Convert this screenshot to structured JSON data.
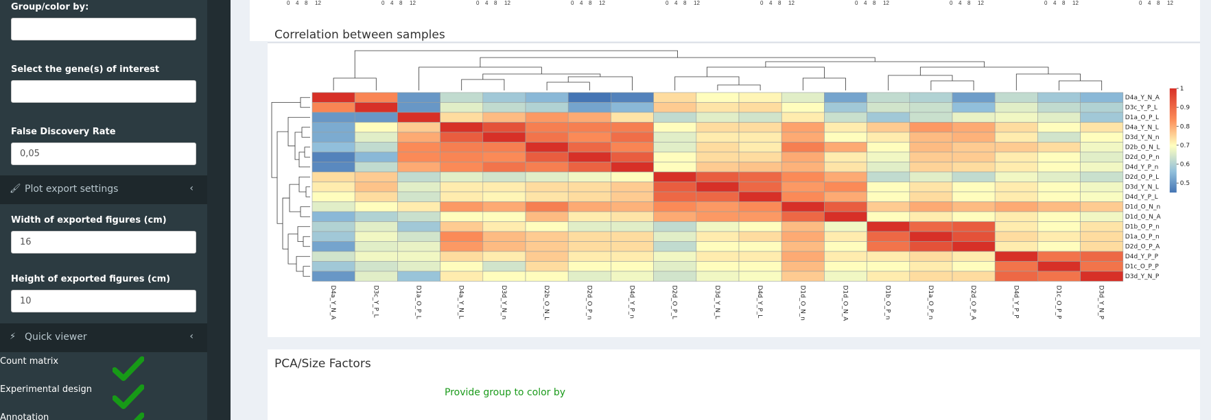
{
  "sidebar": {
    "group_color_label": "Group/color by:",
    "group_color_value": "",
    "genes_label": "Select the gene(s) of interest",
    "genes_value": "",
    "fdr_label": "False Discovery Rate",
    "fdr_value": "0,05",
    "plot_export_label": "Plot export settings",
    "width_label": "Width of exported figures (cm)",
    "width_value": "16",
    "height_label": "Height of exported figures (cm)",
    "height_value": "10",
    "quick_viewer_label": "Quick viewer",
    "quick_items": [
      "Count matrix",
      "Experimental design",
      "Annotation"
    ]
  },
  "top_axis_ticks": [
    "0",
    "4",
    "8",
    "12"
  ],
  "correlation": {
    "title": "Correlation between samples"
  },
  "pca": {
    "title": "PCA/Size Factors",
    "message": "Provide group to color by"
  },
  "colors": {
    "low": "#4575b4",
    "mid": "#ffffbf",
    "high": "#d73027",
    "sidebar_bg": "#2c3b41",
    "message_green": "#1a9a1a"
  },
  "chart_data": {
    "type": "heatmap",
    "title": "",
    "rows": [
      "D4a_Y_N_A",
      "D3c_Y_P_L",
      "D1a_O_P_L",
      "D4a_Y_N_L",
      "D3d_Y_N_n",
      "D2b_O_N_L",
      "D2d_O_P_n",
      "D4d_Y_P_n",
      "D2d_O_P_L",
      "D3d_Y_N_L",
      "D4d_Y_P_L",
      "D1d_O_N_n",
      "D1d_O_N_A",
      "D1b_O_P_n",
      "D1a_O_P_n",
      "D2d_O_P_A",
      "D4d_Y_P_P",
      "D1c_O_P_P",
      "D3d_Y_N_P"
    ],
    "columns": [
      "D4a_Y_N_A",
      "D3c_Y_P_L",
      "D1a_O_P_L",
      "D4a_Y_N_L",
      "D3d_Y_N_n",
      "D2b_O_N_L",
      "D2d_O_P_n",
      "D4d_Y_P_n",
      "D2d_O_P_L",
      "D3d_Y_N_L",
      "D4d_Y_P_L",
      "D1d_O_N_n",
      "D1d_O_N_A",
      "D1b_O_P_n",
      "D1a_O_P_n",
      "D2d_O_P_A",
      "D4d_Y_P_P",
      "D1c_O_P_P",
      "D3d_Y_N_P"
    ],
    "values": [
      [
        1.0,
        0.85,
        0.5,
        0.62,
        0.58,
        0.55,
        0.45,
        0.47,
        0.74,
        0.7,
        0.71,
        0.66,
        0.52,
        0.62,
        0.6,
        0.51,
        0.62,
        0.58,
        0.55
      ],
      [
        0.85,
        1.0,
        0.5,
        0.66,
        0.62,
        0.6,
        0.52,
        0.55,
        0.76,
        0.73,
        0.74,
        0.7,
        0.58,
        0.64,
        0.63,
        0.56,
        0.66,
        0.62,
        0.6
      ],
      [
        0.5,
        0.5,
        1.0,
        0.74,
        0.78,
        0.82,
        0.8,
        0.73,
        0.62,
        0.66,
        0.64,
        0.72,
        0.63,
        0.58,
        0.63,
        0.67,
        0.68,
        0.66,
        0.58
      ],
      [
        0.53,
        0.7,
        0.76,
        1.0,
        0.94,
        0.86,
        0.86,
        0.86,
        0.7,
        0.74,
        0.74,
        0.81,
        0.72,
        0.76,
        0.82,
        0.8,
        0.74,
        0.7,
        0.73
      ],
      [
        0.53,
        0.66,
        0.8,
        0.92,
        1.0,
        0.88,
        0.84,
        0.89,
        0.66,
        0.72,
        0.72,
        0.8,
        0.7,
        0.72,
        0.78,
        0.79,
        0.72,
        0.64,
        0.7
      ],
      [
        0.56,
        0.62,
        0.84,
        0.86,
        0.86,
        1.0,
        0.9,
        0.85,
        0.66,
        0.74,
        0.72,
        0.86,
        0.8,
        0.7,
        0.78,
        0.76,
        0.76,
        0.74,
        0.68
      ],
      [
        0.47,
        0.55,
        0.84,
        0.85,
        0.84,
        0.92,
        1.0,
        0.92,
        0.7,
        0.74,
        0.74,
        0.8,
        0.72,
        0.68,
        0.76,
        0.76,
        0.72,
        0.7,
        0.66
      ],
      [
        0.48,
        0.62,
        0.8,
        0.84,
        0.88,
        0.86,
        0.91,
        1.0,
        0.7,
        0.76,
        0.77,
        0.79,
        0.73,
        0.66,
        0.75,
        0.74,
        0.72,
        0.7,
        0.68
      ],
      [
        0.74,
        0.76,
        0.62,
        0.66,
        0.64,
        0.66,
        0.68,
        0.7,
        1.0,
        0.92,
        0.9,
        0.84,
        0.8,
        0.62,
        0.66,
        0.62,
        0.68,
        0.66,
        0.63
      ],
      [
        0.72,
        0.77,
        0.66,
        0.72,
        0.72,
        0.74,
        0.74,
        0.76,
        0.92,
        1.0,
        0.9,
        0.82,
        0.84,
        0.7,
        0.73,
        0.7,
        0.72,
        0.7,
        0.68
      ],
      [
        0.7,
        0.74,
        0.64,
        0.72,
        0.71,
        0.73,
        0.74,
        0.76,
        0.9,
        0.9,
        1.0,
        0.84,
        0.8,
        0.7,
        0.74,
        0.7,
        0.72,
        0.7,
        0.69
      ],
      [
        0.66,
        0.7,
        0.72,
        0.82,
        0.8,
        0.86,
        0.8,
        0.79,
        0.84,
        0.82,
        0.84,
        1.0,
        0.92,
        0.76,
        0.8,
        0.78,
        0.8,
        0.78,
        0.76
      ],
      [
        0.55,
        0.6,
        0.63,
        0.7,
        0.7,
        0.78,
        0.72,
        0.73,
        0.8,
        0.82,
        0.82,
        0.9,
        1.0,
        0.7,
        0.72,
        0.7,
        0.72,
        0.7,
        0.68
      ],
      [
        0.6,
        0.66,
        0.58,
        0.76,
        0.72,
        0.7,
        0.66,
        0.66,
        0.62,
        0.68,
        0.7,
        0.78,
        0.68,
        1.0,
        0.9,
        0.92,
        0.72,
        0.7,
        0.73
      ],
      [
        0.58,
        0.68,
        0.64,
        0.84,
        0.78,
        0.76,
        0.74,
        0.74,
        0.66,
        0.72,
        0.74,
        0.8,
        0.72,
        0.9,
        1.0,
        0.94,
        0.74,
        0.72,
        0.74
      ],
      [
        0.52,
        0.66,
        0.67,
        0.82,
        0.78,
        0.76,
        0.74,
        0.74,
        0.62,
        0.7,
        0.7,
        0.78,
        0.7,
        0.88,
        0.94,
        1.0,
        0.72,
        0.7,
        0.74
      ],
      [
        0.64,
        0.68,
        0.68,
        0.74,
        0.72,
        0.76,
        0.72,
        0.72,
        0.68,
        0.72,
        0.72,
        0.8,
        0.72,
        0.72,
        0.74,
        0.72,
        1.0,
        0.88,
        0.9
      ],
      [
        0.58,
        0.64,
        0.66,
        0.7,
        0.64,
        0.74,
        0.7,
        0.7,
        0.66,
        0.7,
        0.7,
        0.78,
        0.7,
        0.7,
        0.72,
        0.7,
        0.88,
        1.0,
        0.88
      ],
      [
        0.5,
        0.66,
        0.57,
        0.72,
        0.7,
        0.7,
        0.66,
        0.68,
        0.64,
        0.68,
        0.69,
        0.76,
        0.68,
        0.72,
        0.74,
        0.74,
        0.9,
        0.88,
        1.0
      ]
    ],
    "scale_range": [
      0.45,
      1.0
    ],
    "legend_ticks": [
      "0.5",
      "0.6",
      "0.7",
      "0.8",
      "0.9",
      "1"
    ],
    "legend_placement": "right"
  }
}
